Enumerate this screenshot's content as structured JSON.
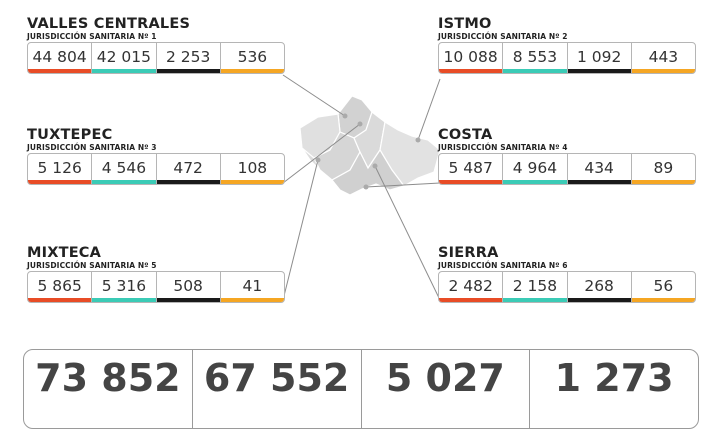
{
  "regions": [
    {
      "name": "VALLES CENTRALES",
      "sub": "JURISDICCIÓN SANITARIA Nº 1",
      "values": [
        "44 804",
        "42 015",
        "2 253",
        "536"
      ]
    },
    {
      "name": "ISTMO",
      "sub": "JURISDICCIÓN SANITARIA Nº 2",
      "values": [
        "10 088",
        "8 553",
        "1 092",
        "443"
      ]
    },
    {
      "name": "TUXTEPEC",
      "sub": "JURISDICCIÓN SANITARIA Nº 3",
      "values": [
        "5 126",
        "4 546",
        "472",
        "108"
      ]
    },
    {
      "name": "COSTA",
      "sub": "JURISDICCIÓN SANITARIA Nº 4",
      "values": [
        "5 487",
        "4 964",
        "434",
        "89"
      ]
    },
    {
      "name": "MIXTECA",
      "sub": "JURISDICCIÓN SANITARIA Nº 5",
      "values": [
        "5 865",
        "5 316",
        "508",
        "41"
      ]
    },
    {
      "name": "SIERRA",
      "sub": "JURISDICCIÓN SANITARIA Nº 6",
      "values": [
        "2 482",
        "2 158",
        "268",
        "56"
      ]
    }
  ],
  "totals": [
    "73 852",
    "67 552",
    "5 027",
    "1 273"
  ],
  "colors": {
    "red": "#e84c26",
    "teal": "#3bcbb6",
    "black": "#1a1a1a",
    "orange": "#f5a623",
    "map": "#d9d9d9"
  }
}
